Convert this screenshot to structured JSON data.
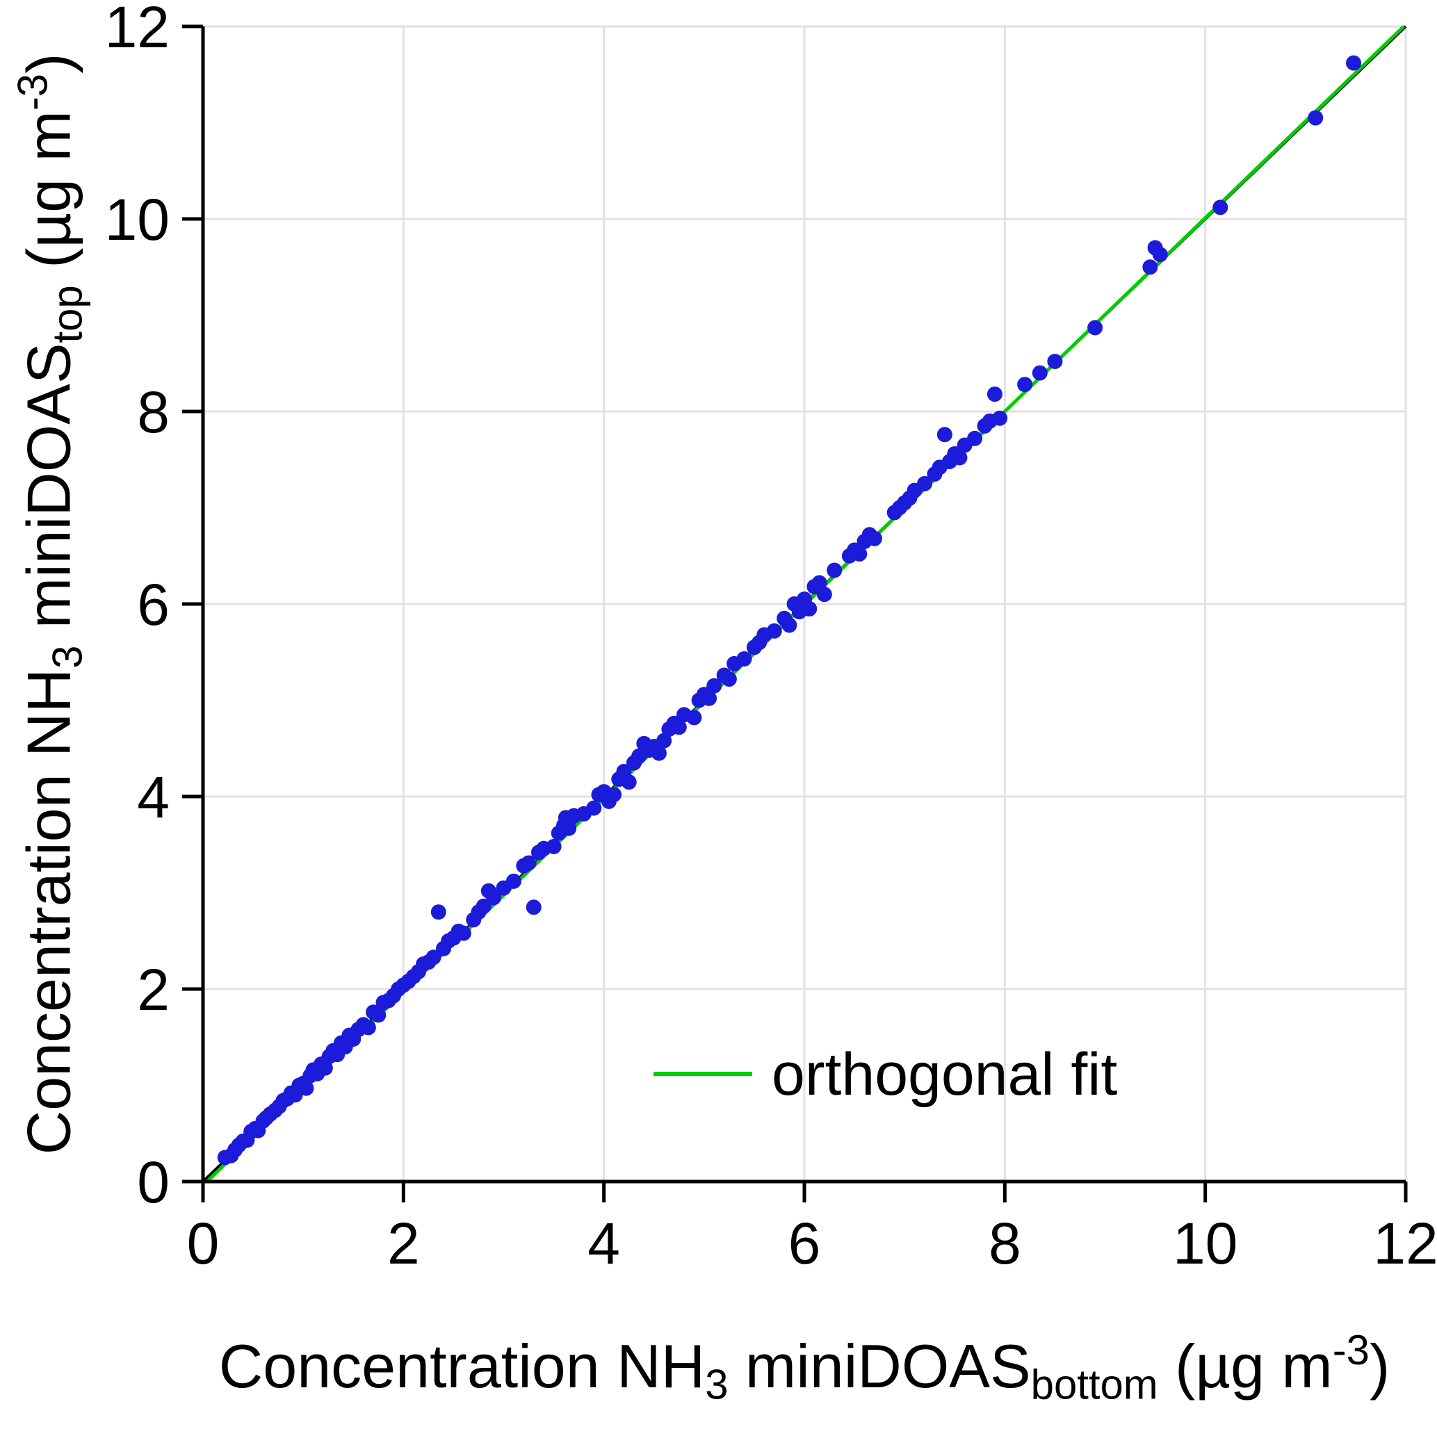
{
  "chart_data": {
    "type": "scatter",
    "title": "",
    "xlabel": "Concentration NH3 miniDOASbottom (ug m-3)",
    "ylabel": "Concentration NH3 miniDOAStop (ug m-3)",
    "xlabel_parts": [
      {
        "t": "Concentration NH",
        "v": "n"
      },
      {
        "t": "3",
        "v": "sub"
      },
      {
        "t": " miniDOAS",
        "v": "n"
      },
      {
        "t": "bottom",
        "v": "sub"
      },
      {
        "t": " (µg m",
        "v": "n"
      },
      {
        "t": "-3",
        "v": "sup"
      },
      {
        "t": ")",
        "v": "n"
      }
    ],
    "ylabel_parts": [
      {
        "t": "Concentration NH",
        "v": "n"
      },
      {
        "t": "3",
        "v": "sub"
      },
      {
        "t": " miniDOAS",
        "v": "n"
      },
      {
        "t": "top",
        "v": "sub"
      },
      {
        "t": " (µg m",
        "v": "n"
      },
      {
        "t": "-3",
        "v": "sup"
      },
      {
        "t": ")",
        "v": "n"
      }
    ],
    "xlim": [
      0,
      12
    ],
    "ylim": [
      0,
      12
    ],
    "xticks": [
      0,
      2,
      4,
      6,
      8,
      10,
      12
    ],
    "yticks": [
      0,
      2,
      4,
      6,
      8,
      10,
      12
    ],
    "grid": true,
    "grid_color": "#e2e2e2",
    "legend": {
      "label": "orthogonal fit",
      "position": "lower right"
    },
    "identity_line": {
      "color": "#000000"
    },
    "orthogonal_fit": {
      "slope": 1.005,
      "intercept": -0.04,
      "color": "#00cd00"
    },
    "point_color": "#1b1bd9",
    "points": [
      [
        0.22,
        0.25
      ],
      [
        0.28,
        0.27
      ],
      [
        0.32,
        0.33
      ],
      [
        0.36,
        0.38
      ],
      [
        0.4,
        0.42
      ],
      [
        0.44,
        0.43
      ],
      [
        0.48,
        0.52
      ],
      [
        0.52,
        0.55
      ],
      [
        0.55,
        0.53
      ],
      [
        0.6,
        0.63
      ],
      [
        0.63,
        0.66
      ],
      [
        0.67,
        0.7
      ],
      [
        0.72,
        0.74
      ],
      [
        0.76,
        0.78
      ],
      [
        0.8,
        0.84
      ],
      [
        0.84,
        0.86
      ],
      [
        0.88,
        0.92
      ],
      [
        0.92,
        0.9
      ],
      [
        0.96,
        1.0
      ],
      [
        1.0,
        1.02
      ],
      [
        1.03,
        0.97
      ],
      [
        1.07,
        1.1
      ],
      [
        1.1,
        1.16
      ],
      [
        1.14,
        1.12
      ],
      [
        1.18,
        1.22
      ],
      [
        1.22,
        1.18
      ],
      [
        1.26,
        1.3
      ],
      [
        1.3,
        1.36
      ],
      [
        1.34,
        1.32
      ],
      [
        1.38,
        1.44
      ],
      [
        1.42,
        1.4
      ],
      [
        1.46,
        1.52
      ],
      [
        1.5,
        1.48
      ],
      [
        1.55,
        1.58
      ],
      [
        1.6,
        1.63
      ],
      [
        1.65,
        1.6
      ],
      [
        1.7,
        1.76
      ],
      [
        1.75,
        1.73
      ],
      [
        1.8,
        1.86
      ],
      [
        1.85,
        1.88
      ],
      [
        1.9,
        1.93
      ],
      [
        1.95,
        2.0
      ],
      [
        2.0,
        2.04
      ],
      [
        2.05,
        2.08
      ],
      [
        2.1,
        2.13
      ],
      [
        2.15,
        2.18
      ],
      [
        2.2,
        2.26
      ],
      [
        2.25,
        2.28
      ],
      [
        2.3,
        2.33
      ],
      [
        2.35,
        2.8
      ],
      [
        2.4,
        2.42
      ],
      [
        2.45,
        2.5
      ],
      [
        2.5,
        2.53
      ],
      [
        2.55,
        2.6
      ],
      [
        2.6,
        2.58
      ],
      [
        2.7,
        2.72
      ],
      [
        2.75,
        2.8
      ],
      [
        2.8,
        2.86
      ],
      [
        2.85,
        3.02
      ],
      [
        2.9,
        2.95
      ],
      [
        3.0,
        3.05
      ],
      [
        3.1,
        3.12
      ],
      [
        3.2,
        3.28
      ],
      [
        3.25,
        3.31
      ],
      [
        3.3,
        2.85
      ],
      [
        3.35,
        3.42
      ],
      [
        3.4,
        3.46
      ],
      [
        3.5,
        3.48
      ],
      [
        3.55,
        3.62
      ],
      [
        3.6,
        3.7
      ],
      [
        3.62,
        3.78
      ],
      [
        3.65,
        3.67
      ],
      [
        3.7,
        3.8
      ],
      [
        3.8,
        3.82
      ],
      [
        3.9,
        3.88
      ],
      [
        3.95,
        4.02
      ],
      [
        4.0,
        4.05
      ],
      [
        4.05,
        3.95
      ],
      [
        4.1,
        4.02
      ],
      [
        4.15,
        4.18
      ],
      [
        4.2,
        4.26
      ],
      [
        4.25,
        4.15
      ],
      [
        4.3,
        4.35
      ],
      [
        4.35,
        4.42
      ],
      [
        4.4,
        4.55
      ],
      [
        4.45,
        4.48
      ],
      [
        4.5,
        4.52
      ],
      [
        4.55,
        4.45
      ],
      [
        4.6,
        4.58
      ],
      [
        4.65,
        4.7
      ],
      [
        4.7,
        4.76
      ],
      [
        4.75,
        4.72
      ],
      [
        4.8,
        4.85
      ],
      [
        4.9,
        4.82
      ],
      [
        4.95,
        5.0
      ],
      [
        5.0,
        5.06
      ],
      [
        5.05,
        5.02
      ],
      [
        5.1,
        5.15
      ],
      [
        5.2,
        5.26
      ],
      [
        5.25,
        5.22
      ],
      [
        5.3,
        5.38
      ],
      [
        5.4,
        5.43
      ],
      [
        5.5,
        5.55
      ],
      [
        5.55,
        5.6
      ],
      [
        5.6,
        5.68
      ],
      [
        5.7,
        5.72
      ],
      [
        5.8,
        5.85
      ],
      [
        5.85,
        5.78
      ],
      [
        5.9,
        6.0
      ],
      [
        5.95,
        5.92
      ],
      [
        6.0,
        6.05
      ],
      [
        6.05,
        5.95
      ],
      [
        6.1,
        6.18
      ],
      [
        6.15,
        6.22
      ],
      [
        6.2,
        6.1
      ],
      [
        6.3,
        6.35
      ],
      [
        6.45,
        6.5
      ],
      [
        6.5,
        6.56
      ],
      [
        6.55,
        6.52
      ],
      [
        6.6,
        6.65
      ],
      [
        6.65,
        6.72
      ],
      [
        6.7,
        6.68
      ],
      [
        6.9,
        6.95
      ],
      [
        6.95,
        7.0
      ],
      [
        7.0,
        7.05
      ],
      [
        7.05,
        7.1
      ],
      [
        7.1,
        7.18
      ],
      [
        7.2,
        7.25
      ],
      [
        7.3,
        7.35
      ],
      [
        7.35,
        7.42
      ],
      [
        7.4,
        7.76
      ],
      [
        7.45,
        7.48
      ],
      [
        7.5,
        7.56
      ],
      [
        7.55,
        7.52
      ],
      [
        7.6,
        7.65
      ],
      [
        7.7,
        7.72
      ],
      [
        7.8,
        7.85
      ],
      [
        7.85,
        7.9
      ],
      [
        7.9,
        8.18
      ],
      [
        7.95,
        7.93
      ],
      [
        8.2,
        8.28
      ],
      [
        8.35,
        8.4
      ],
      [
        8.5,
        8.52
      ],
      [
        8.9,
        8.87
      ],
      [
        9.45,
        9.5
      ],
      [
        9.5,
        9.7
      ],
      [
        9.55,
        9.63
      ],
      [
        10.15,
        10.12
      ],
      [
        11.1,
        11.05
      ],
      [
        11.48,
        11.62
      ]
    ]
  }
}
